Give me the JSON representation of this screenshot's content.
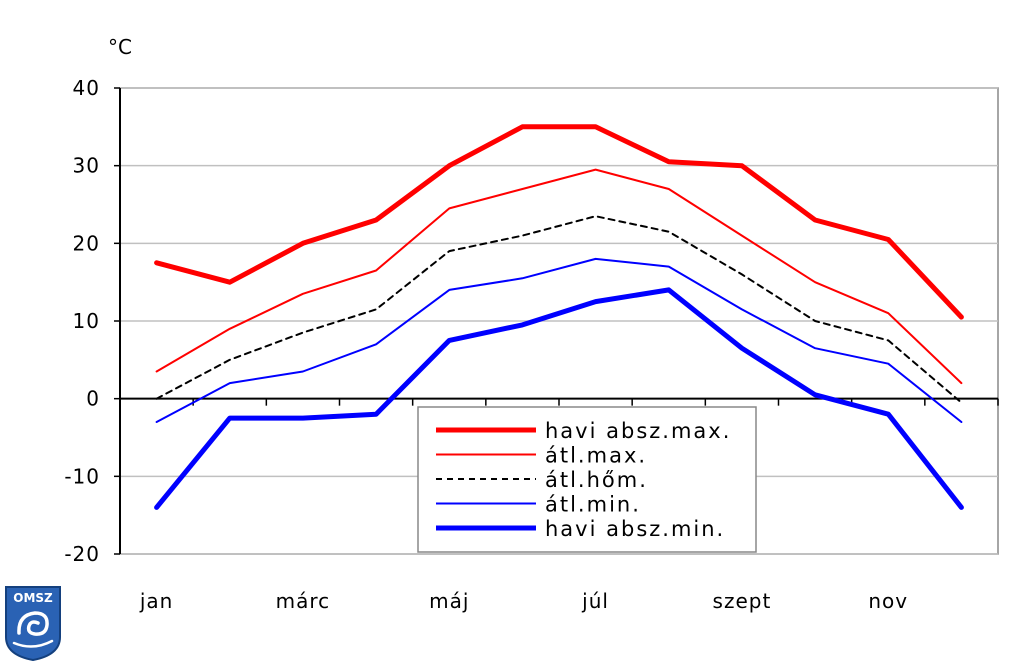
{
  "chart_data": {
    "type": "line",
    "y_unit": "°C",
    "ylim": [
      -20,
      40
    ],
    "y_ticks": [
      -20,
      -10,
      0,
      10,
      20,
      30,
      40
    ],
    "grid": "horizontal",
    "month_count": 12,
    "x_tick_labels": [
      {
        "month": 1,
        "label": "jan"
      },
      {
        "month": 3,
        "label": "márc"
      },
      {
        "month": 5,
        "label": "máj"
      },
      {
        "month": 7,
        "label": "júl"
      },
      {
        "month": 9,
        "label": "szept"
      },
      {
        "month": 11,
        "label": "nov"
      }
    ],
    "series": [
      {
        "name": "havi absz.max.",
        "color": "#ff0000",
        "style": "solid-thick",
        "values": [
          17.5,
          15,
          20,
          23,
          30,
          35,
          35,
          30.5,
          30,
          23,
          20.5,
          10.5
        ]
      },
      {
        "name": "átl.max.",
        "color": "#ff0000",
        "style": "solid-thin",
        "values": [
          3.5,
          9,
          13.5,
          16.5,
          24.5,
          27,
          29.5,
          27,
          21,
          15,
          11,
          2
        ]
      },
      {
        "name": "átl.hőm.",
        "color": "#000000",
        "style": "dashed",
        "values": [
          0,
          5,
          8.5,
          11.5,
          19,
          21,
          23.5,
          21.5,
          16,
          10,
          7.5,
          -0.5
        ]
      },
      {
        "name": "átl.min.",
        "color": "#0000ff",
        "style": "solid-thin",
        "values": [
          -3,
          2,
          3.5,
          7,
          14,
          15.5,
          18,
          17,
          11.5,
          6.5,
          4.5,
          -3
        ]
      },
      {
        "name": "havi absz.min.",
        "color": "#0000ff",
        "style": "solid-thick",
        "values": [
          -14,
          -2.5,
          -2.5,
          -2,
          7.5,
          9.5,
          12.5,
          14,
          6.5,
          0.5,
          -2,
          -14
        ]
      }
    ],
    "legend_position": "bottom-center"
  },
  "logo": {
    "text": "OMSZ"
  }
}
